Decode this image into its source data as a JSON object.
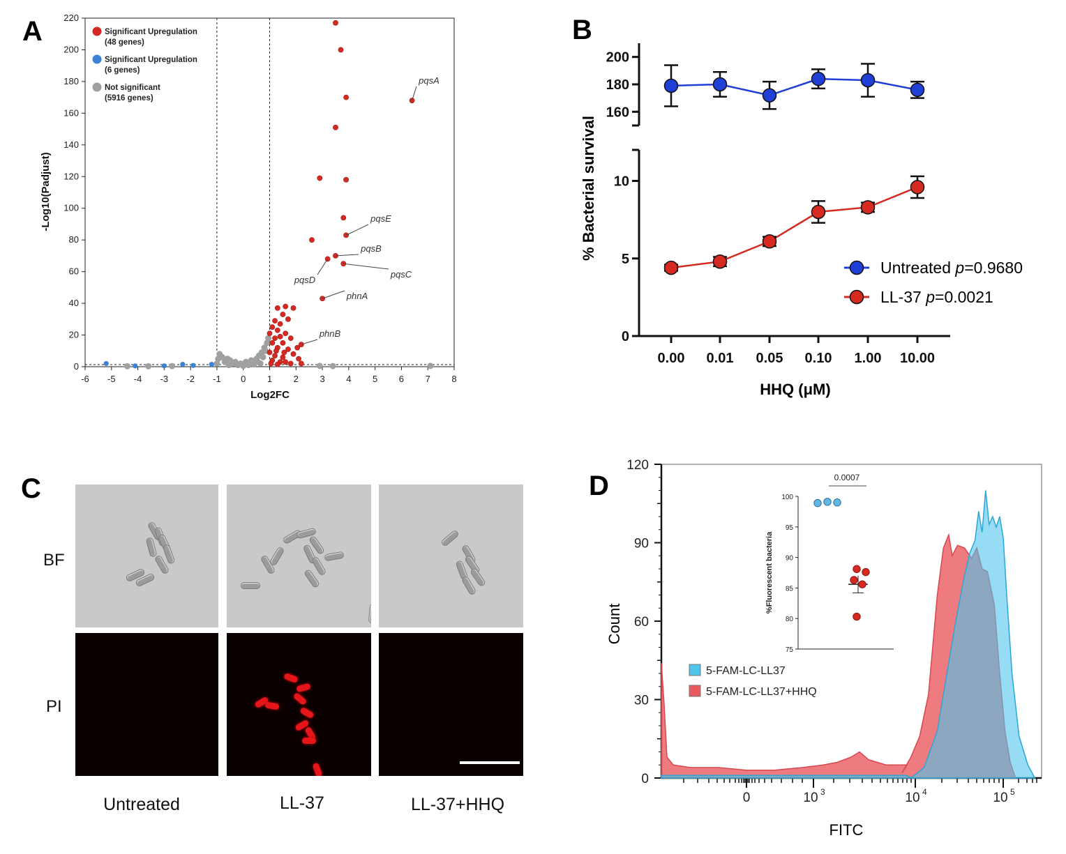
{
  "panels": {
    "a": "A",
    "b": "B",
    "c": "C",
    "d": "D"
  },
  "chart_data": [
    {
      "id": "A",
      "type": "scatter",
      "xlabel": "Log2FC",
      "ylabel": "-Log10(Padjust)",
      "xlim": [
        -6,
        8
      ],
      "ylim": [
        0,
        220
      ],
      "x_ticks": [
        -6,
        -5,
        -4,
        -3,
        -2,
        -1,
        0,
        1,
        2,
        3,
        4,
        5,
        6,
        7,
        8
      ],
      "y_ticks": [
        0,
        20,
        40,
        60,
        80,
        100,
        120,
        140,
        160,
        180,
        200,
        220
      ],
      "thresholds": {
        "log2fc": [
          -1,
          1
        ],
        "neg_log10_padj": 1.3
      },
      "legend_position": "top-left",
      "legend": [
        {
          "label": "Significant Upregulation",
          "sublabel": "(48 genes)",
          "color": "#d42a23"
        },
        {
          "label": "Significant Upregulation",
          "sublabel": "(6 genes)",
          "color": "#3b82d6"
        },
        {
          "label": "Not significant",
          "sublabel": "(5916 genes)",
          "color": "#a0a0a0"
        }
      ],
      "series": [
        {
          "name": "Significant Upregulation (48 genes)",
          "color": "#d42a23",
          "points": [
            [
              3.5,
              217
            ],
            [
              3.7,
              200
            ],
            [
              3.9,
              170
            ],
            [
              3.5,
              151
            ],
            [
              2.9,
              119
            ],
            [
              3.9,
              118
            ],
            [
              3.8,
              94
            ],
            [
              2.6,
              80
            ],
            [
              3.9,
              83
            ],
            [
              6.4,
              168
            ],
            [
              3.2,
              68
            ],
            [
              3.5,
              70
            ],
            [
              3.8,
              65
            ],
            [
              3.0,
              43
            ],
            [
              1.3,
              37
            ],
            [
              1.6,
              38
            ],
            [
              1.9,
              37
            ],
            [
              1.5,
              33
            ],
            [
              1.2,
              29
            ],
            [
              1.7,
              30
            ],
            [
              1.4,
              27
            ],
            [
              1.1,
              25
            ],
            [
              1.3,
              23
            ],
            [
              1.0,
              21
            ],
            [
              1.6,
              21
            ],
            [
              1.2,
              18
            ],
            [
              1.4,
              19
            ],
            [
              1.8,
              18
            ],
            [
              1.1,
              15
            ],
            [
              1.5,
              15
            ],
            [
              1.3,
              12
            ],
            [
              1.7,
              11
            ],
            [
              2.2,
              14
            ],
            [
              1.0,
              9
            ],
            [
              1.2,
              7
            ],
            [
              1.5,
              6
            ],
            [
              1.9,
              8
            ],
            [
              1.1,
              4
            ],
            [
              1.4,
              3
            ],
            [
              1.6,
              3
            ],
            [
              2.1,
              5
            ],
            [
              1.05,
              2
            ],
            [
              1.3,
              1.5
            ],
            [
              1.8,
              2
            ],
            [
              2.2,
              2
            ],
            [
              1.25,
              10
            ],
            [
              1.55,
              9
            ],
            [
              2.05,
              12
            ]
          ]
        },
        {
          "name": "Significant Upregulation (6 genes)",
          "color": "#3b82d6",
          "points": [
            [
              -5.2,
              2
            ],
            [
              -2.3,
              1.5
            ],
            [
              -1.2,
              1.5
            ],
            [
              -4.1,
              0.5
            ],
            [
              -3.0,
              0.5
            ],
            [
              -1.9,
              0.8
            ]
          ]
        },
        {
          "name": "Not significant (5916 genes)",
          "color": "#a0a0a0",
          "points": [
            [
              -0.9,
              8
            ],
            [
              -0.8,
              6
            ],
            [
              -0.6,
              5
            ],
            [
              -0.5,
              4
            ],
            [
              -0.3,
              3
            ],
            [
              -0.1,
              2
            ],
            [
              0.1,
              3
            ],
            [
              0.3,
              4
            ],
            [
              0.5,
              5
            ],
            [
              0.6,
              7
            ],
            [
              0.7,
              9
            ],
            [
              0.8,
              12
            ],
            [
              0.9,
              15
            ],
            [
              0.95,
              18
            ],
            [
              0.85,
              10
            ],
            [
              0.75,
              6
            ],
            [
              0.55,
              3
            ],
            [
              0.2,
              1
            ],
            [
              -0.2,
              1
            ],
            [
              -0.4,
              2
            ],
            [
              -0.7,
              3
            ],
            [
              -0.95,
              5
            ],
            [
              -1.0,
              2
            ],
            [
              0.0,
              0.5
            ],
            [
              0.4,
              1.5
            ],
            [
              0.65,
              2
            ],
            [
              -0.55,
              1
            ],
            [
              2.9,
              0.5
            ],
            [
              3.4,
              0.4
            ],
            [
              7.1,
              0.5
            ],
            [
              -4.4,
              0.3
            ],
            [
              -3.6,
              0.3
            ],
            [
              -2.7,
              0.4
            ]
          ]
        }
      ],
      "annotations": [
        {
          "text": "pqsA",
          "x": 6.4,
          "y": 168
        },
        {
          "text": "pqsE",
          "x": 3.9,
          "y": 83
        },
        {
          "text": "pqsB",
          "x": 3.5,
          "y": 70
        },
        {
          "text": "pqsC",
          "x": 3.8,
          "y": 65
        },
        {
          "text": "pqsD",
          "x": 3.2,
          "y": 68
        },
        {
          "text": "phnA",
          "x": 3.0,
          "y": 43
        },
        {
          "text": "phnB",
          "x": 2.2,
          "y": 14
        }
      ]
    },
    {
      "id": "B",
      "type": "line",
      "xlabel": "HHQ (μM)",
      "ylabel": "% Bacterial survival",
      "categories": [
        "0.00",
        "0.01",
        "0.05",
        "0.10",
        "1.00",
        "10.00"
      ],
      "y_ticks_lower": [
        0,
        5,
        10
      ],
      "y_ticks_upper": [
        160,
        180,
        200
      ],
      "ylim_lower": [
        0,
        12
      ],
      "ylim_upper": [
        150,
        210
      ],
      "legend_position": "bottom-right",
      "series": [
        {
          "name": "Untreated",
          "p_label": "p",
          "p_value": "=0.9680",
          "color": "#1f3fd6",
          "values": [
            179,
            180,
            172,
            184,
            183,
            176
          ],
          "errors": [
            15,
            9,
            10,
            7,
            12,
            6
          ]
        },
        {
          "name": "LL-37",
          "p_label": "p",
          "p_value": "=0.0021",
          "color": "#d62a20",
          "values": [
            4.4,
            4.8,
            6.1,
            8.0,
            8.3,
            9.6
          ],
          "errors": [
            0.2,
            0.3,
            0.3,
            0.7,
            0.3,
            0.7
          ]
        }
      ]
    },
    {
      "id": "D",
      "type": "area",
      "xlabel": "FITC",
      "ylabel": "Count",
      "ylim": [
        0,
        120
      ],
      "y_ticks": [
        0,
        30,
        60,
        90,
        120
      ],
      "x_tick_labels": [
        "0",
        "10",
        "10",
        "10"
      ],
      "x_tick_exponents": [
        "",
        "3",
        "4",
        "5"
      ],
      "legend_position": "middle-left",
      "series": [
        {
          "name": "5-FAM-LC-LL37",
          "color": "#4fc4ec"
        },
        {
          "name": "5-FAM-LC-LL37+HHQ",
          "color": "#e85a5f"
        }
      ],
      "inset": {
        "type": "scatter",
        "ylabel": "%Fluorescent bacteria",
        "ylim": [
          75,
          100
        ],
        "y_ticks": [
          75,
          80,
          85,
          90,
          95,
          100
        ],
        "significance": "0.0007",
        "groups": [
          {
            "color": "#63b7e2",
            "values": [
              98.9,
              99.1,
              99.0
            ]
          },
          {
            "color": "#d62a20",
            "values": [
              88.1,
              87.6,
              86.3,
              85.6,
              80.3
            ],
            "mean": 85.6,
            "sem": 1.4
          }
        ]
      }
    }
  ],
  "micrographs": {
    "rows": [
      "BF",
      "PI"
    ],
    "columns": [
      "Untreated",
      "LL-37",
      "LL-37+HHQ"
    ]
  }
}
